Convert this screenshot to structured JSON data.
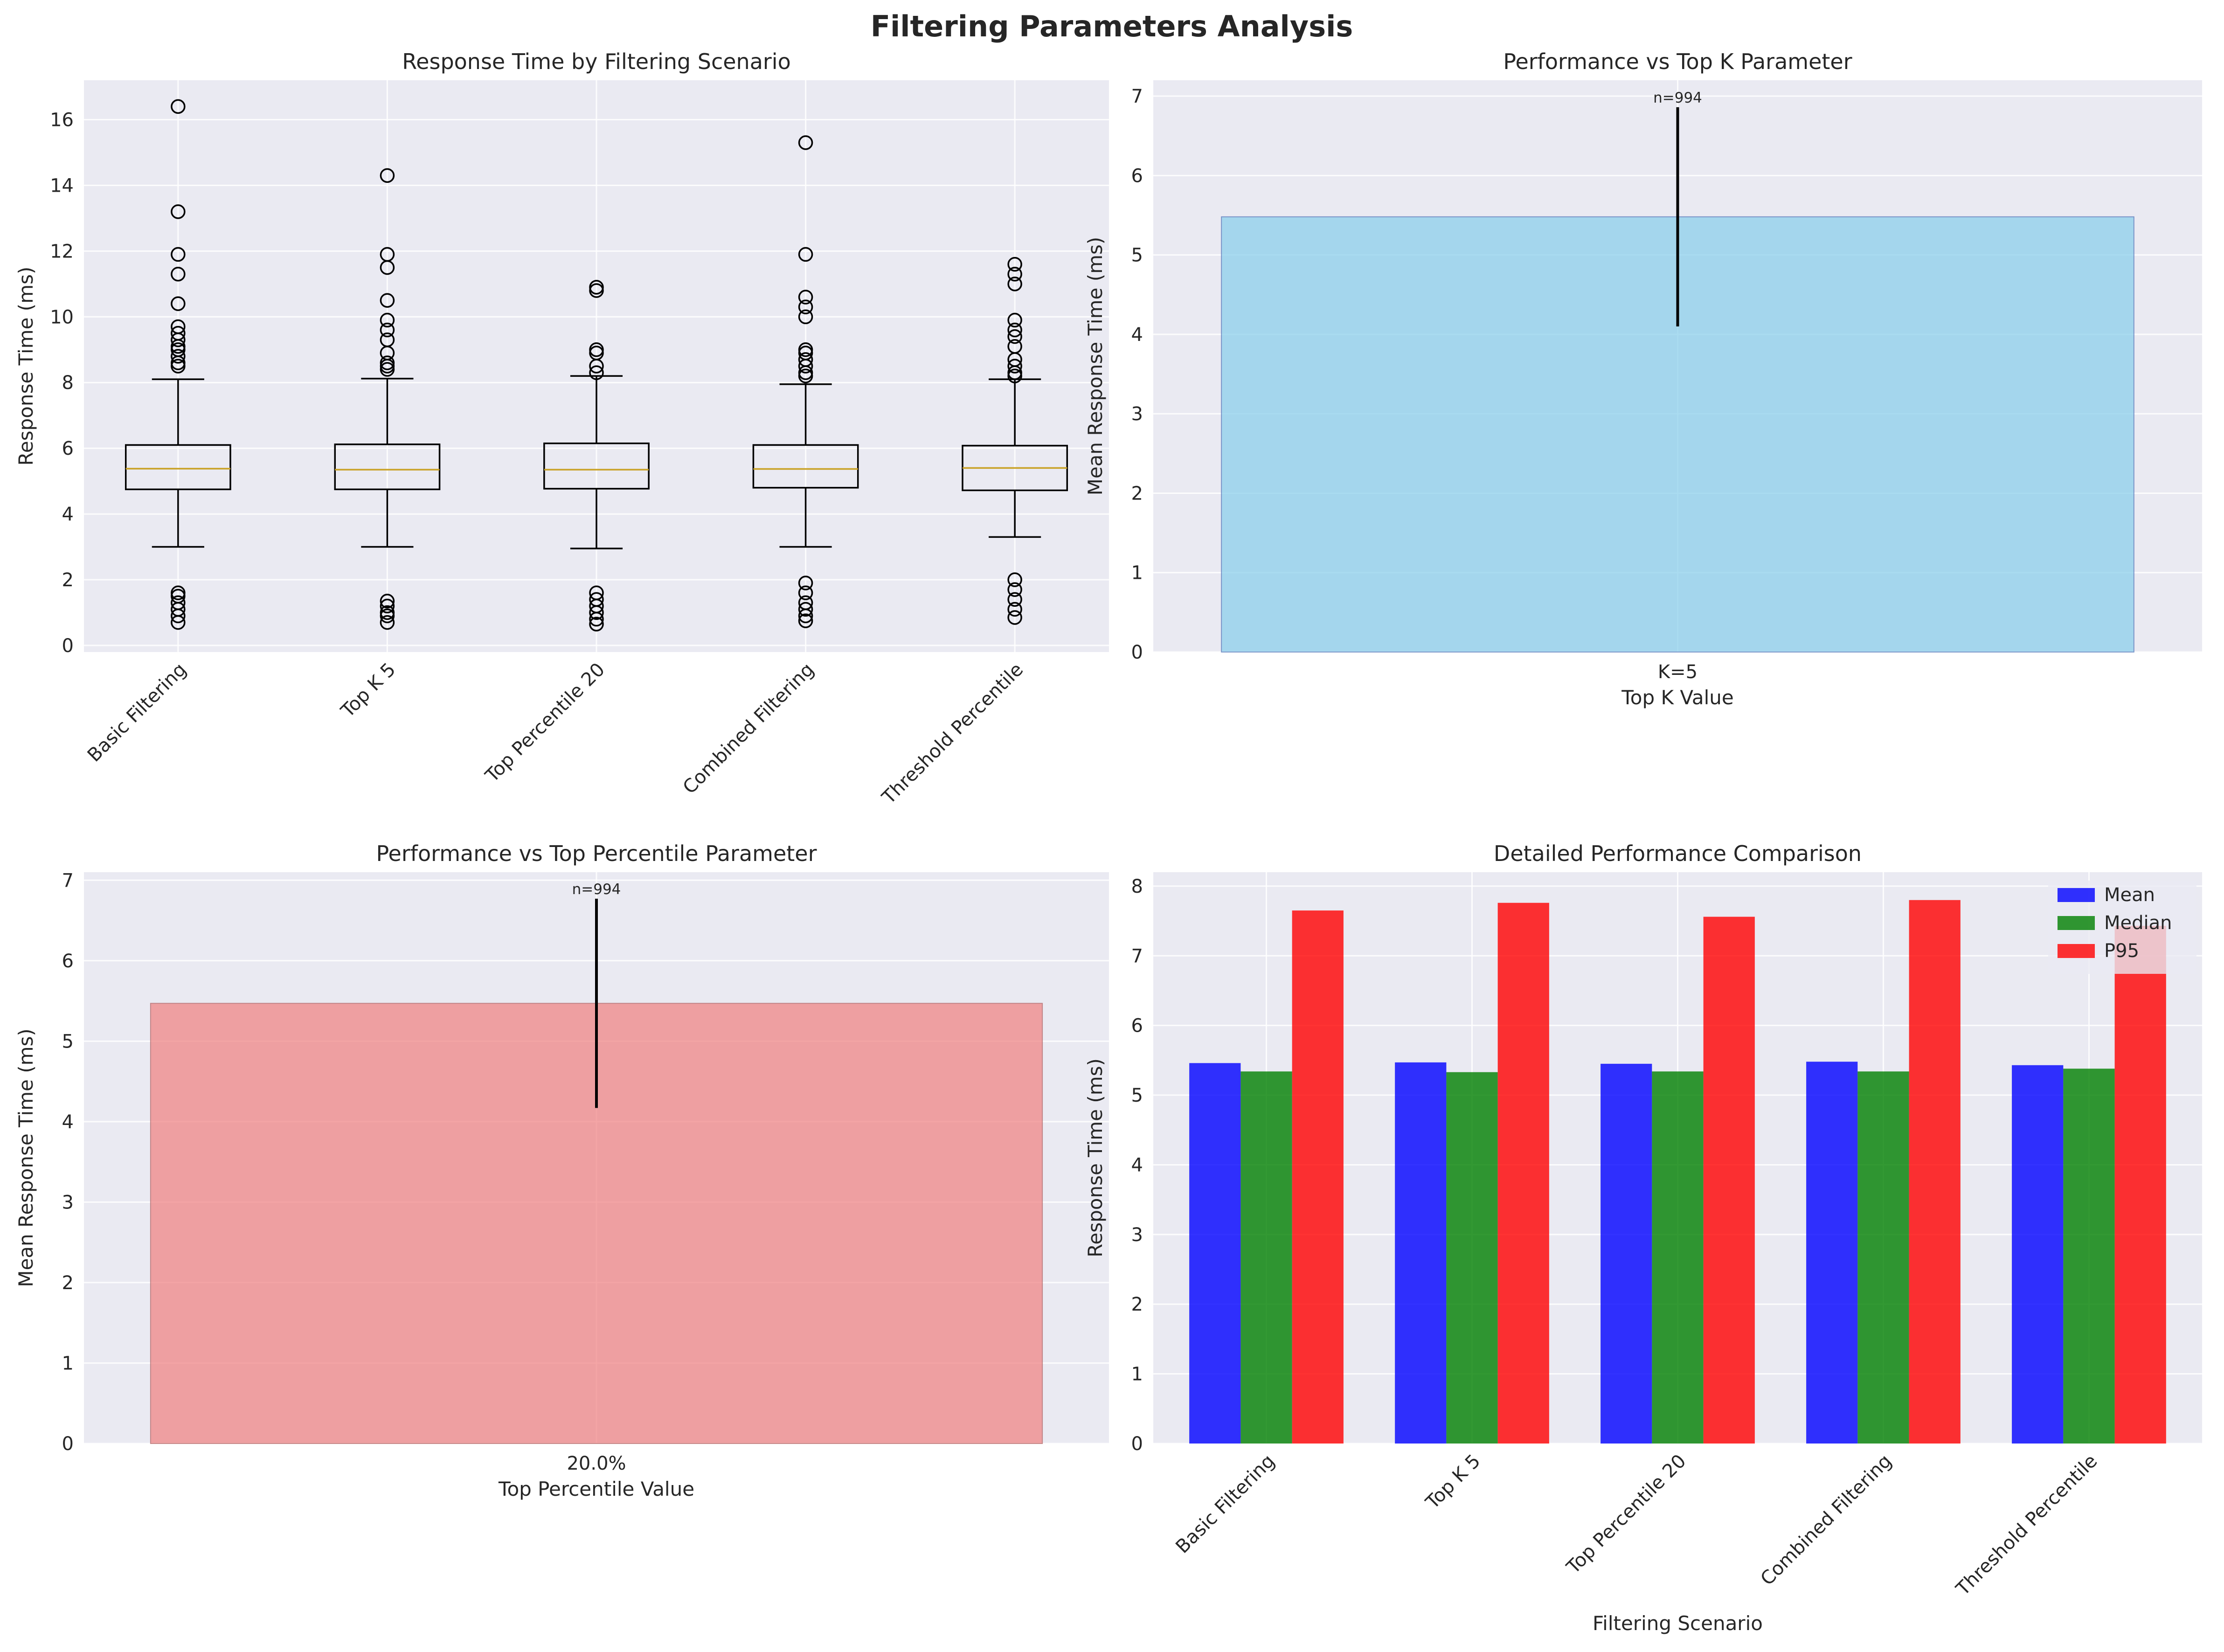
{
  "figure": {
    "title": "Filtering Parameters Analysis"
  },
  "colors": {
    "panel_bg": "#eaeaf2",
    "grid": "#ffffff",
    "axis_text": "#262626",
    "median_line": "#c9a227",
    "topk_bar": "#87ceeb",
    "topk_edge": "#4a6fb5",
    "toppct_bar": "#f08080",
    "toppct_edge": "#b05a5a",
    "mean": "#0000ff",
    "median": "#008000",
    "p95": "#ff0000"
  },
  "chart_data": [
    {
      "type": "box",
      "title": "Response Time by Filtering Scenario",
      "xlabel": "",
      "ylabel": "Response Time (ms)",
      "ylim": [
        -0.2,
        17.2
      ],
      "yticks": [
        0,
        2,
        4,
        6,
        8,
        10,
        12,
        14,
        16
      ],
      "grid": true,
      "categories": [
        "Basic Filtering",
        "Top K 5",
        "Top Percentile 20",
        "Combined Filtering",
        "Threshold Percentile"
      ],
      "boxes": [
        {
          "whisker_low": 3.0,
          "q1": 4.75,
          "median": 5.38,
          "q3": 6.1,
          "whisker_high": 8.1,
          "outliers": [
            16.4,
            13.2,
            11.9,
            11.3,
            10.4,
            9.7,
            9.5,
            9.3,
            9.1,
            9.0,
            8.8,
            8.6,
            8.5,
            1.6,
            1.5,
            1.3,
            1.1,
            0.9,
            0.7
          ]
        },
        {
          "whisker_low": 3.0,
          "q1": 4.75,
          "median": 5.35,
          "q3": 6.12,
          "whisker_high": 8.12,
          "outliers": [
            14.3,
            11.9,
            11.5,
            10.5,
            9.9,
            9.6,
            9.3,
            8.9,
            8.6,
            8.5,
            8.4,
            1.35,
            1.2,
            1.0,
            0.9,
            0.7
          ]
        },
        {
          "whisker_low": 2.95,
          "q1": 4.77,
          "median": 5.35,
          "q3": 6.15,
          "whisker_high": 8.2,
          "outliers": [
            10.9,
            10.8,
            9.0,
            8.9,
            8.5,
            8.3,
            1.6,
            1.4,
            1.2,
            1.0,
            0.8,
            0.65
          ]
        },
        {
          "whisker_low": 3.0,
          "q1": 4.8,
          "median": 5.37,
          "q3": 6.1,
          "whisker_high": 7.95,
          "outliers": [
            15.3,
            11.9,
            10.6,
            10.3,
            10.0,
            9.0,
            8.9,
            8.7,
            8.5,
            8.3,
            8.2,
            1.9,
            1.6,
            1.3,
            1.1,
            0.9,
            0.75
          ]
        },
        {
          "whisker_low": 3.3,
          "q1": 4.72,
          "median": 5.4,
          "q3": 6.08,
          "whisker_high": 8.1,
          "outliers": [
            11.6,
            11.3,
            11.0,
            9.9,
            9.6,
            9.4,
            9.1,
            8.7,
            8.5,
            8.3,
            8.2,
            2.0,
            1.7,
            1.4,
            1.1,
            0.85
          ]
        }
      ]
    },
    {
      "type": "bar",
      "title": "Performance vs Top K Parameter",
      "xlabel": "Top K Value",
      "ylabel": "Mean Response Time (ms)",
      "ylim": [
        0,
        7.2
      ],
      "yticks": [
        0,
        1,
        2,
        3,
        4,
        5,
        6,
        7
      ],
      "grid": true,
      "categories": [
        "K=5"
      ],
      "values": [
        5.48
      ],
      "error": [
        1.38
      ],
      "annotations": [
        "n=994"
      ]
    },
    {
      "type": "bar",
      "title": "Performance vs Top Percentile Parameter",
      "xlabel": "Top Percentile Value",
      "ylabel": "Mean Response Time (ms)",
      "ylim": [
        0,
        7.1
      ],
      "yticks": [
        0,
        1,
        2,
        3,
        4,
        5,
        6,
        7
      ],
      "grid": true,
      "categories": [
        "20.0%"
      ],
      "values": [
        5.47
      ],
      "error": [
        1.3
      ],
      "annotations": [
        "n=994"
      ]
    },
    {
      "type": "bar",
      "title": "Detailed Performance Comparison",
      "xlabel": "Filtering Scenario",
      "ylabel": "Response Time (ms)",
      "ylim": [
        0,
        8.2
      ],
      "yticks": [
        0,
        1,
        2,
        3,
        4,
        5,
        6,
        7,
        8
      ],
      "grid": true,
      "legend": "top-right",
      "categories": [
        "Basic Filtering",
        "Top K 5",
        "Top Percentile 20",
        "Combined Filtering",
        "Threshold Percentile"
      ],
      "series": [
        {
          "name": "Mean",
          "values": [
            5.46,
            5.47,
            5.45,
            5.48,
            5.43
          ]
        },
        {
          "name": "Median",
          "values": [
            5.34,
            5.33,
            5.34,
            5.34,
            5.38
          ]
        },
        {
          "name": "P95",
          "values": [
            7.65,
            7.76,
            7.56,
            7.8,
            7.43
          ]
        }
      ]
    }
  ]
}
